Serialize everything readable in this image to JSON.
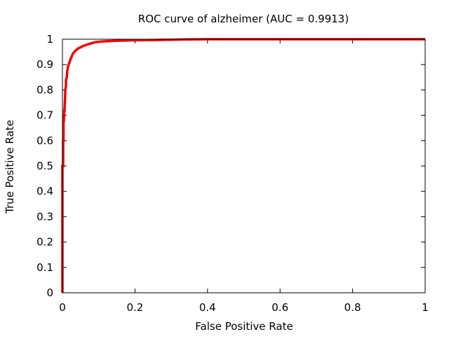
{
  "chart_data": {
    "type": "line",
    "title": "ROC curve of alzheimer (AUC = 0.9913)",
    "xlabel": "False Positive Rate",
    "ylabel": "True Positive Rate",
    "xlim": [
      0,
      1
    ],
    "ylim": [
      0,
      1
    ],
    "x_ticks": [
      0,
      0.2,
      0.4,
      0.6,
      0.8,
      1
    ],
    "x_tick_labels": [
      "0",
      "0.2",
      "0.4",
      "0.6",
      "0.8",
      "1"
    ],
    "y_ticks": [
      0,
      0.1,
      0.2,
      0.3,
      0.4,
      0.5,
      0.6,
      0.7,
      0.8,
      0.9,
      1
    ],
    "y_tick_labels": [
      "0",
      "0.1",
      "0.2",
      "0.3",
      "0.4",
      "0.5",
      "0.6",
      "0.7",
      "0.8",
      "0.9",
      "1"
    ],
    "grid": false,
    "legend": "none",
    "series": [
      {
        "color": "#ee0000",
        "x": [
          0,
          0,
          0.002,
          0.002,
          0.003,
          0.003,
          0.004,
          0.004,
          0.005,
          0.005,
          0.006,
          0.006,
          0.007,
          0.008,
          0.01,
          0.01,
          0.012,
          0.013,
          0.015,
          0.017,
          0.02,
          0.022,
          0.025,
          0.028,
          0.03,
          0.033,
          0.036,
          0.04,
          0.045,
          0.05,
          0.055,
          0.06,
          0.07,
          0.08,
          0.09,
          0.1,
          0.12,
          0.15,
          0.2,
          0.25,
          0.3,
          0.33,
          0.4,
          0.5,
          0.6,
          0.7,
          0.8,
          0.9,
          1
        ],
        "y": [
          0,
          0.5,
          0.5,
          0.6,
          0.6,
          0.68,
          0.68,
          0.7,
          0.7,
          0.72,
          0.72,
          0.73,
          0.76,
          0.8,
          0.82,
          0.84,
          0.85,
          0.87,
          0.89,
          0.9,
          0.91,
          0.92,
          0.93,
          0.94,
          0.945,
          0.95,
          0.955,
          0.96,
          0.965,
          0.968,
          0.972,
          0.975,
          0.98,
          0.984,
          0.988,
          0.99,
          0.992,
          0.994,
          0.996,
          0.997,
          0.998,
          0.999,
          1,
          1,
          1,
          1,
          1,
          1,
          1
        ]
      }
    ]
  }
}
